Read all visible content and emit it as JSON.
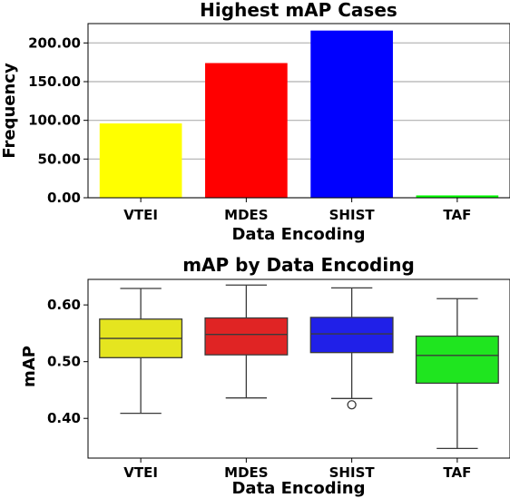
{
  "chart_data": [
    {
      "type": "bar",
      "title": "Highest mAP Cases",
      "xlabel": "Data Encoding",
      "ylabel": "Frequency",
      "categories": [
        "VTEI",
        "MDES",
        "SHIST",
        "TAF"
      ],
      "values": [
        96,
        174,
        216,
        3
      ],
      "colors": [
        "#ffff00",
        "#ff0000",
        "#0000ff",
        "#00ff00"
      ],
      "ylim": [
        0,
        225
      ],
      "yticks": [
        0,
        50,
        100,
        150,
        200
      ],
      "ytick_labels": [
        "0.00",
        "50.00",
        "100.00",
        "150.00",
        "200.00"
      ],
      "grid": "horizontal"
    },
    {
      "type": "box",
      "title": "mAP by Data Encoding",
      "xlabel": "Data Encoding",
      "ylabel": "mAP",
      "categories": [
        "VTEI",
        "MDES",
        "SHIST",
        "TAF"
      ],
      "colors": [
        "#e5e51f",
        "#e02424",
        "#2020e8",
        "#1fe51f"
      ],
      "boxes": [
        {
          "whislo": 0.409,
          "q1": 0.507,
          "med": 0.541,
          "q3": 0.575,
          "whishi": 0.629,
          "fliers": []
        },
        {
          "whislo": 0.436,
          "q1": 0.512,
          "med": 0.548,
          "q3": 0.577,
          "whishi": 0.635,
          "fliers": []
        },
        {
          "whislo": 0.435,
          "q1": 0.516,
          "med": 0.549,
          "q3": 0.578,
          "whishi": 0.63,
          "fliers": [
            0.424
          ]
        },
        {
          "whislo": 0.347,
          "q1": 0.462,
          "med": 0.511,
          "q3": 0.545,
          "whishi": 0.611,
          "fliers": []
        }
      ],
      "ylim": [
        0.33,
        0.645
      ],
      "yticks": [
        0.4,
        0.5,
        0.6
      ],
      "ytick_labels": [
        "0.40",
        "0.50",
        "0.60"
      ],
      "grid": "none"
    }
  ]
}
